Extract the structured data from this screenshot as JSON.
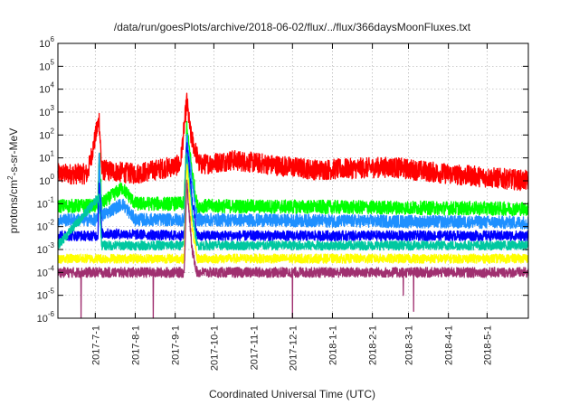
{
  "chart_data": {
    "type": "line",
    "title": "/data/run/goesPlots/archive/2018-06-02/flux/../flux/366daysMoonFluxes.txt",
    "xlabel": "Coordinated Universal Time (UTC)",
    "ylabel": "protons/cm2-s-sr-MeV",
    "ylabel_parts": {
      "base": "protons/cm",
      "sup": "2",
      "rest": "-s-sr-MeV"
    },
    "y_scale": "log",
    "ylim": [
      1e-06,
      1000000.0
    ],
    "y_ticks": [
      {
        "value": 1e-06,
        "base": "10",
        "exp": "-6"
      },
      {
        "value": 1e-05,
        "base": "10",
        "exp": "-5"
      },
      {
        "value": 0.0001,
        "base": "10",
        "exp": "-4"
      },
      {
        "value": 0.001,
        "base": "10",
        "exp": "-3"
      },
      {
        "value": 0.01,
        "base": "10",
        "exp": "-2"
      },
      {
        "value": 0.1,
        "base": "10",
        "exp": "-1"
      },
      {
        "value": 1.0,
        "base": "10",
        "exp": "0"
      },
      {
        "value": 10.0,
        "base": "10",
        "exp": "1"
      },
      {
        "value": 100.0,
        "base": "10",
        "exp": "2"
      },
      {
        "value": 1000.0,
        "base": "10",
        "exp": "3"
      },
      {
        "value": 10000.0,
        "base": "10",
        "exp": "4"
      },
      {
        "value": 100000.0,
        "base": "10",
        "exp": "5"
      },
      {
        "value": 1000000.0,
        "base": "10",
        "exp": "6"
      }
    ],
    "xlim": [
      "2017-06-02",
      "2018-06-02"
    ],
    "x_ticks": [
      "2017-7-1",
      "2017-8-1",
      "2017-9-1",
      "2017-10-1",
      "2017-11-1",
      "2017-12-1",
      "2018-1-1",
      "2018-2-1",
      "2018-3-1",
      "2018-4-1",
      "2018-5-1"
    ],
    "grid": true,
    "legend": "none",
    "series": [
      {
        "color": "#ff0000",
        "baseline": 2.0,
        "spread": 0.45,
        "points": [
          [
            "2017-06-02",
            2.0
          ],
          [
            "2017-06-25",
            2.0
          ],
          [
            "2017-07-04",
            500
          ],
          [
            "2017-07-06",
            3.0
          ],
          [
            "2017-08-01",
            2.0
          ],
          [
            "2017-09-05",
            5.0
          ],
          [
            "2017-09-10",
            3000
          ],
          [
            "2017-09-13",
            100
          ],
          [
            "2017-09-20",
            5.0
          ],
          [
            "2017-10-15",
            8.0
          ],
          [
            "2017-12-20",
            3.0
          ],
          [
            "2018-02-15",
            4.0
          ],
          [
            "2018-04-01",
            2.0
          ],
          [
            "2018-06-02",
            1.0
          ]
        ]
      },
      {
        "color": "#00ff00",
        "baseline": 0.08,
        "spread": 0.3,
        "points": [
          [
            "2017-06-02",
            0.08
          ],
          [
            "2017-07-03",
            0.08
          ],
          [
            "2017-07-04",
            20
          ],
          [
            "2017-07-06",
            0.1
          ],
          [
            "2017-07-22",
            0.5
          ],
          [
            "2017-08-01",
            0.1
          ],
          [
            "2017-09-08",
            0.1
          ],
          [
            "2017-09-10",
            200
          ],
          [
            "2017-09-14",
            3.0
          ],
          [
            "2017-09-18",
            0.08
          ],
          [
            "2018-06-02",
            0.06
          ]
        ]
      },
      {
        "color": "#1e90ff",
        "baseline": 0.02,
        "spread": 0.28,
        "points": [
          [
            "2017-06-02",
            0.02
          ],
          [
            "2017-07-03",
            0.02
          ],
          [
            "2017-07-04",
            10
          ],
          [
            "2017-07-06",
            0.03
          ],
          [
            "2017-07-22",
            0.1
          ],
          [
            "2017-08-01",
            0.02
          ],
          [
            "2017-09-08",
            0.02
          ],
          [
            "2017-09-10",
            100
          ],
          [
            "2017-09-14",
            1.0
          ],
          [
            "2017-09-18",
            0.02
          ],
          [
            "2018-06-02",
            0.015
          ]
        ]
      },
      {
        "color": "#0000ff",
        "baseline": 0.004,
        "spread": 0.22,
        "points": [
          [
            "2017-06-02",
            0.004
          ],
          [
            "2017-07-03",
            0.004
          ],
          [
            "2017-07-04",
            1.0
          ],
          [
            "2017-07-06",
            0.005
          ],
          [
            "2017-09-08",
            0.004
          ],
          [
            "2017-09-10",
            50
          ],
          [
            "2017-09-14",
            0.2
          ],
          [
            "2017-09-18",
            0.004
          ],
          [
            "2018-06-02",
            0.004
          ]
        ]
      },
      {
        "color": "#00c8a0",
        "baseline": 0.0015,
        "spread": 0.2,
        "points": [
          [
            "2017-06-02",
            0.0015
          ],
          [
            "2017-07-04",
            0.2
          ],
          [
            "2017-07-06",
            0.0015
          ],
          [
            "2017-09-08",
            0.0015
          ],
          [
            "2017-09-10",
            20
          ],
          [
            "2017-09-14",
            0.05
          ],
          [
            "2017-09-18",
            0.0015
          ],
          [
            "2018-06-02",
            0.0015
          ]
        ]
      },
      {
        "color": "#ffff00",
        "baseline": 0.0004,
        "spread": 0.2,
        "points": [
          [
            "2017-06-02",
            0.0004
          ],
          [
            "2017-09-08",
            0.0004
          ],
          [
            "2017-09-10",
            5.0
          ],
          [
            "2017-09-14",
            0.01
          ],
          [
            "2017-09-18",
            0.0004
          ],
          [
            "2018-06-02",
            0.0004
          ]
        ]
      },
      {
        "color": "#a03070",
        "baseline": 0.0001,
        "spread": 0.22,
        "points": [
          [
            "2017-06-02",
            0.0001
          ],
          [
            "2017-09-08",
            0.0001
          ],
          [
            "2017-09-10",
            1.0
          ],
          [
            "2017-09-14",
            0.001
          ],
          [
            "2017-09-18",
            0.0001
          ],
          [
            "2018-06-02",
            0.0001
          ]
        ],
        "dips": [
          [
            "2017-06-20",
            1e-06
          ],
          [
            "2017-08-15",
            1e-06
          ],
          [
            "2017-12-01",
            1e-06
          ],
          [
            "2018-02-25",
            1e-05
          ],
          [
            "2018-03-05",
            2e-06
          ]
        ]
      }
    ]
  }
}
